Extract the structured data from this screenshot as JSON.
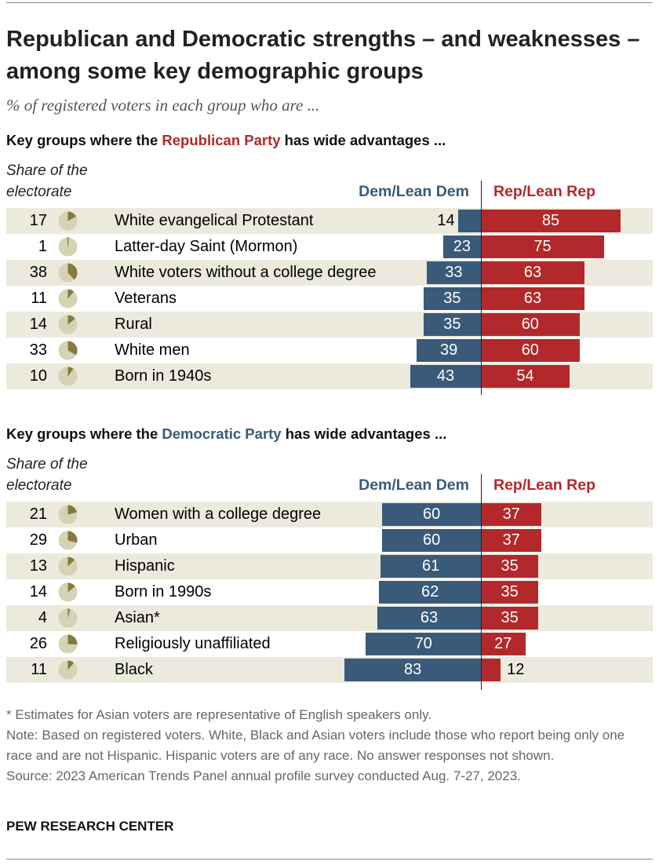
{
  "title": "Republican and Democratic strengths – and weaknesses – among some key demographic groups",
  "subtitle": "% of registered voters in each group who are ...",
  "colors": {
    "dem": "#3a5a7a",
    "rep": "#b3282a",
    "stripe": "#ebeadc",
    "pie_bg": "#d6d2b5",
    "pie_slice": "#857a3c"
  },
  "chart_data": [
    {
      "type": "bar",
      "title_pre": "Key groups where the ",
      "title_party": "Republican Party",
      "title_post": " has wide advantages ...",
      "share_label": "Share of the electorate",
      "series_names": [
        "Dem/Lean Dem",
        "Rep/Lean Rep"
      ],
      "categories": [
        "White evangelical Protestant",
        "Latter-day Saint (Mormon)",
        "White voters without a college degree",
        "Veterans",
        "Rural",
        "White men",
        "Born in 1940s"
      ],
      "share": [
        17,
        1,
        38,
        11,
        14,
        33,
        10
      ],
      "series": [
        {
          "name": "Dem/Lean Dem",
          "values": [
            14,
            23,
            33,
            35,
            35,
            39,
            43
          ]
        },
        {
          "name": "Rep/Lean Rep",
          "values": [
            85,
            75,
            63,
            63,
            60,
            60,
            54
          ]
        }
      ]
    },
    {
      "type": "bar",
      "title_pre": "Key groups where the ",
      "title_party": "Democratic Party",
      "title_post": " has wide advantages ...",
      "share_label": "Share of the electorate",
      "series_names": [
        "Dem/Lean Dem",
        "Rep/Lean Rep"
      ],
      "categories": [
        "Women with a college degree",
        "Urban",
        "Hispanic",
        "Born in 1990s",
        "Asian*",
        "Religiously unaffiliated",
        "Black"
      ],
      "share": [
        21,
        29,
        13,
        14,
        4,
        26,
        11
      ],
      "series": [
        {
          "name": "Dem/Lean Dem",
          "values": [
            60,
            60,
            61,
            62,
            63,
            70,
            83
          ]
        },
        {
          "name": "Rep/Lean Rep",
          "values": [
            37,
            37,
            35,
            35,
            35,
            27,
            12
          ]
        }
      ]
    }
  ],
  "notes": [
    "* Estimates for Asian voters are representative of English speakers only.",
    "Note: Based on registered voters. White, Black and Asian voters include those who report being only one race and are not Hispanic. Hispanic voters are of any race. No answer responses not shown.",
    "Source: 2023 American Trends Panel annual profile survey conducted Aug. 7-27, 2023."
  ],
  "brand": "PEW RESEARCH CENTER"
}
